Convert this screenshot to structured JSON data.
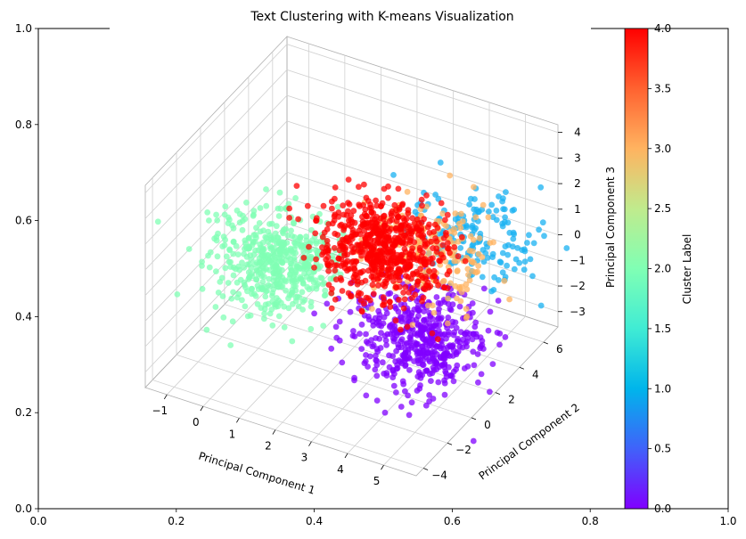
{
  "chart_data": {
    "type": "scatter",
    "title": "Text Clustering with K-means Visualization",
    "projection": "3d",
    "xlabel": "Principal Component 1",
    "ylabel": "Principal Component 2",
    "zlabel": "Principal Component 3",
    "x_ticks": [
      "−1",
      "0",
      "1",
      "2",
      "3",
      "4",
      "5"
    ],
    "y_ticks": [
      "−4",
      "−2",
      "0",
      "2",
      "4",
      "6"
    ],
    "z_ticks": [
      "4",
      "3",
      "2",
      "1",
      "0",
      "−1",
      "−2",
      "−3"
    ],
    "background_axis": {
      "x_ticks": [
        "0.0",
        "0.2",
        "0.4",
        "0.6",
        "0.8",
        "1.0"
      ],
      "y_ticks": [
        "0.0",
        "0.2",
        "0.4",
        "0.6",
        "0.8",
        "1.0"
      ]
    },
    "colorbar": {
      "label": "Cluster Label",
      "colormap": "rainbow",
      "range": [
        0,
        4
      ],
      "ticks": [
        "0.0",
        "0.5",
        "1.0",
        "1.5",
        "2.0",
        "2.5",
        "3.0",
        "3.5",
        "4.0"
      ]
    },
    "clusters": [
      {
        "label": 0,
        "color": "#8000ff",
        "center_x": 4.0,
        "center_y": 1.5,
        "center_z": -2.2,
        "count": 500
      },
      {
        "label": 1,
        "color": "#1ab2f2",
        "center_x": 4.5,
        "center_y": 4.5,
        "center_z": 0.5,
        "count": 160
      },
      {
        "label": 2,
        "color": "#80ffb4",
        "center_x": 0.5,
        "center_y": 0.0,
        "center_z": 0.0,
        "count": 500
      },
      {
        "label": 3,
        "color": "#ffb360",
        "center_x": 3.8,
        "center_y": 3.0,
        "center_z": 0.5,
        "count": 200
      },
      {
        "label": 4,
        "color": "#ff0000",
        "center_x": 2.8,
        "center_y": 2.0,
        "center_z": 0.5,
        "count": 650
      }
    ]
  }
}
